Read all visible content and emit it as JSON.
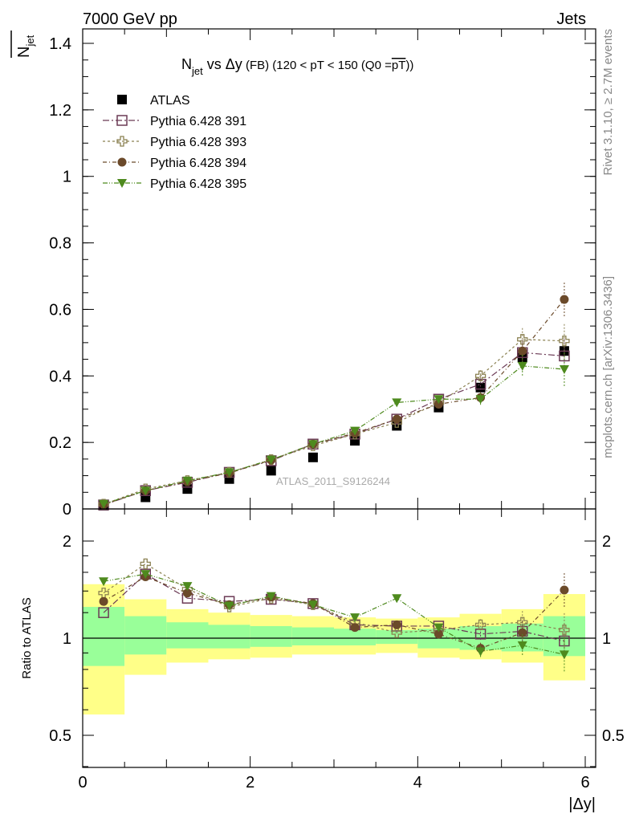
{
  "header": {
    "left": "7000 GeV pp",
    "right": "Jets"
  },
  "side_labels": {
    "rivet": "Rivet 3.1.10, ≥ 2.7M events",
    "mcplots": "mcplots.cern.ch [arXiv:1306.3436]"
  },
  "watermark": "ATLAS_2011_S9126244",
  "colors": {
    "atlas": "#000000",
    "p391": "#6b3a55",
    "p393": "#8a8050",
    "p394": "#6b4a2a",
    "p395": "#4e8a1e",
    "band_inner": "#99ff99",
    "band_outer": "#ffff88"
  },
  "chart_data": [
    {
      "type": "scatter",
      "title": "N_jet vs Δy (FB) (120 < pT < 150 (Q0 = pT))",
      "title_parts": {
        "n": "N",
        "jet": "jet",
        "vs": " vs ",
        "dy": "Δy",
        "fb": " (FB) ",
        "range": "(120 < pT < 150 (Q0 =",
        "pt": "pT",
        "close": "))"
      },
      "ylabel": "N_jet",
      "ylabel_parts": {
        "n": "N",
        "jet": "jet"
      },
      "xlim": [
        0,
        6
      ],
      "ylim": [
        0,
        1.45
      ],
      "yticks": [
        "0",
        "0.2",
        "0.4",
        "0.6",
        "0.8",
        "1",
        "1.2",
        "1.4"
      ],
      "grid": false,
      "legend_position": "top-left",
      "x": [
        0.25,
        0.75,
        1.25,
        1.75,
        2.25,
        2.75,
        3.25,
        3.75,
        4.25,
        4.75,
        5.25,
        5.75
      ],
      "series": [
        {
          "name": "ATLAS",
          "marker": "square-filled",
          "values": [
            0.01,
            0.035,
            0.06,
            0.09,
            0.115,
            0.155,
            0.205,
            0.25,
            0.305,
            0.365,
            0.455,
            0.475
          ]
        },
        {
          "name": "Pythia 6.428 391",
          "marker": "square-open",
          "values": [
            0.012,
            0.055,
            0.08,
            0.11,
            0.145,
            0.195,
            0.225,
            0.27,
            0.33,
            0.375,
            0.47,
            0.46
          ]
        },
        {
          "name": "Pythia 6.428 393",
          "marker": "cross-open",
          "values": [
            0.014,
            0.06,
            0.085,
            0.11,
            0.148,
            0.19,
            0.225,
            0.26,
            0.32,
            0.4,
            0.51,
            0.505
          ]
        },
        {
          "name": "Pythia 6.428 394",
          "marker": "circle-filled",
          "values": [
            0.013,
            0.055,
            0.082,
            0.108,
            0.147,
            0.195,
            0.228,
            0.27,
            0.315,
            0.335,
            0.475,
            0.63
          ]
        },
        {
          "name": "Pythia 6.428 395",
          "marker": "triangle-down-filled",
          "values": [
            0.015,
            0.055,
            0.085,
            0.11,
            0.148,
            0.195,
            0.235,
            0.32,
            0.33,
            0.33,
            0.43,
            0.42
          ]
        }
      ]
    },
    {
      "type": "scatter",
      "title": "",
      "xlabel": "|Δy|",
      "ylabel": "Ratio to ATLAS",
      "xlim": [
        0,
        6
      ],
      "ylim": [
        0.35,
        2.35
      ],
      "xticks": [
        "0",
        "2",
        "4",
        "6"
      ],
      "yticks": [
        "0.5",
        "1",
        "2"
      ],
      "grid": false,
      "x": [
        0.25,
        0.75,
        1.25,
        1.75,
        2.25,
        2.75,
        3.25,
        3.75,
        4.25,
        4.75,
        5.25,
        5.75
      ],
      "band_inner": {
        "lo": [
          0.82,
          0.89,
          0.93,
          0.93,
          0.94,
          0.95,
          0.95,
          0.96,
          0.93,
          0.92,
          0.91,
          0.88
        ],
        "hi": [
          1.25,
          1.17,
          1.12,
          1.1,
          1.09,
          1.08,
          1.07,
          1.06,
          1.07,
          1.09,
          1.11,
          1.17
        ]
      },
      "band_outer": {
        "lo": [
          0.58,
          0.77,
          0.84,
          0.86,
          0.87,
          0.89,
          0.89,
          0.9,
          0.87,
          0.86,
          0.84,
          0.74
        ],
        "hi": [
          1.47,
          1.32,
          1.23,
          1.2,
          1.18,
          1.17,
          1.16,
          1.15,
          1.16,
          1.19,
          1.23,
          1.37
        ]
      },
      "series": [
        {
          "name": "Pythia 6.428 391",
          "marker": "square-open",
          "values": [
            1.2,
            1.58,
            1.33,
            1.3,
            1.32,
            1.28,
            1.1,
            1.09,
            1.09,
            1.03,
            1.05,
            0.98
          ]
        },
        {
          "name": "Pythia 6.428 393",
          "marker": "cross-open",
          "values": [
            1.38,
            1.7,
            1.42,
            1.25,
            1.33,
            1.27,
            1.12,
            1.04,
            1.06,
            1.1,
            1.12,
            1.06
          ]
        },
        {
          "name": "Pythia 6.428 394",
          "marker": "circle-filled",
          "values": [
            1.3,
            1.55,
            1.38,
            1.27,
            1.34,
            1.28,
            1.08,
            1.1,
            1.03,
            0.93,
            1.04,
            1.41
          ]
        },
        {
          "name": "Pythia 6.428 395",
          "marker": "triangle-down-filled",
          "values": [
            1.5,
            1.58,
            1.45,
            1.26,
            1.35,
            1.27,
            1.16,
            1.33,
            1.08,
            0.91,
            0.95,
            0.89
          ]
        }
      ]
    }
  ]
}
